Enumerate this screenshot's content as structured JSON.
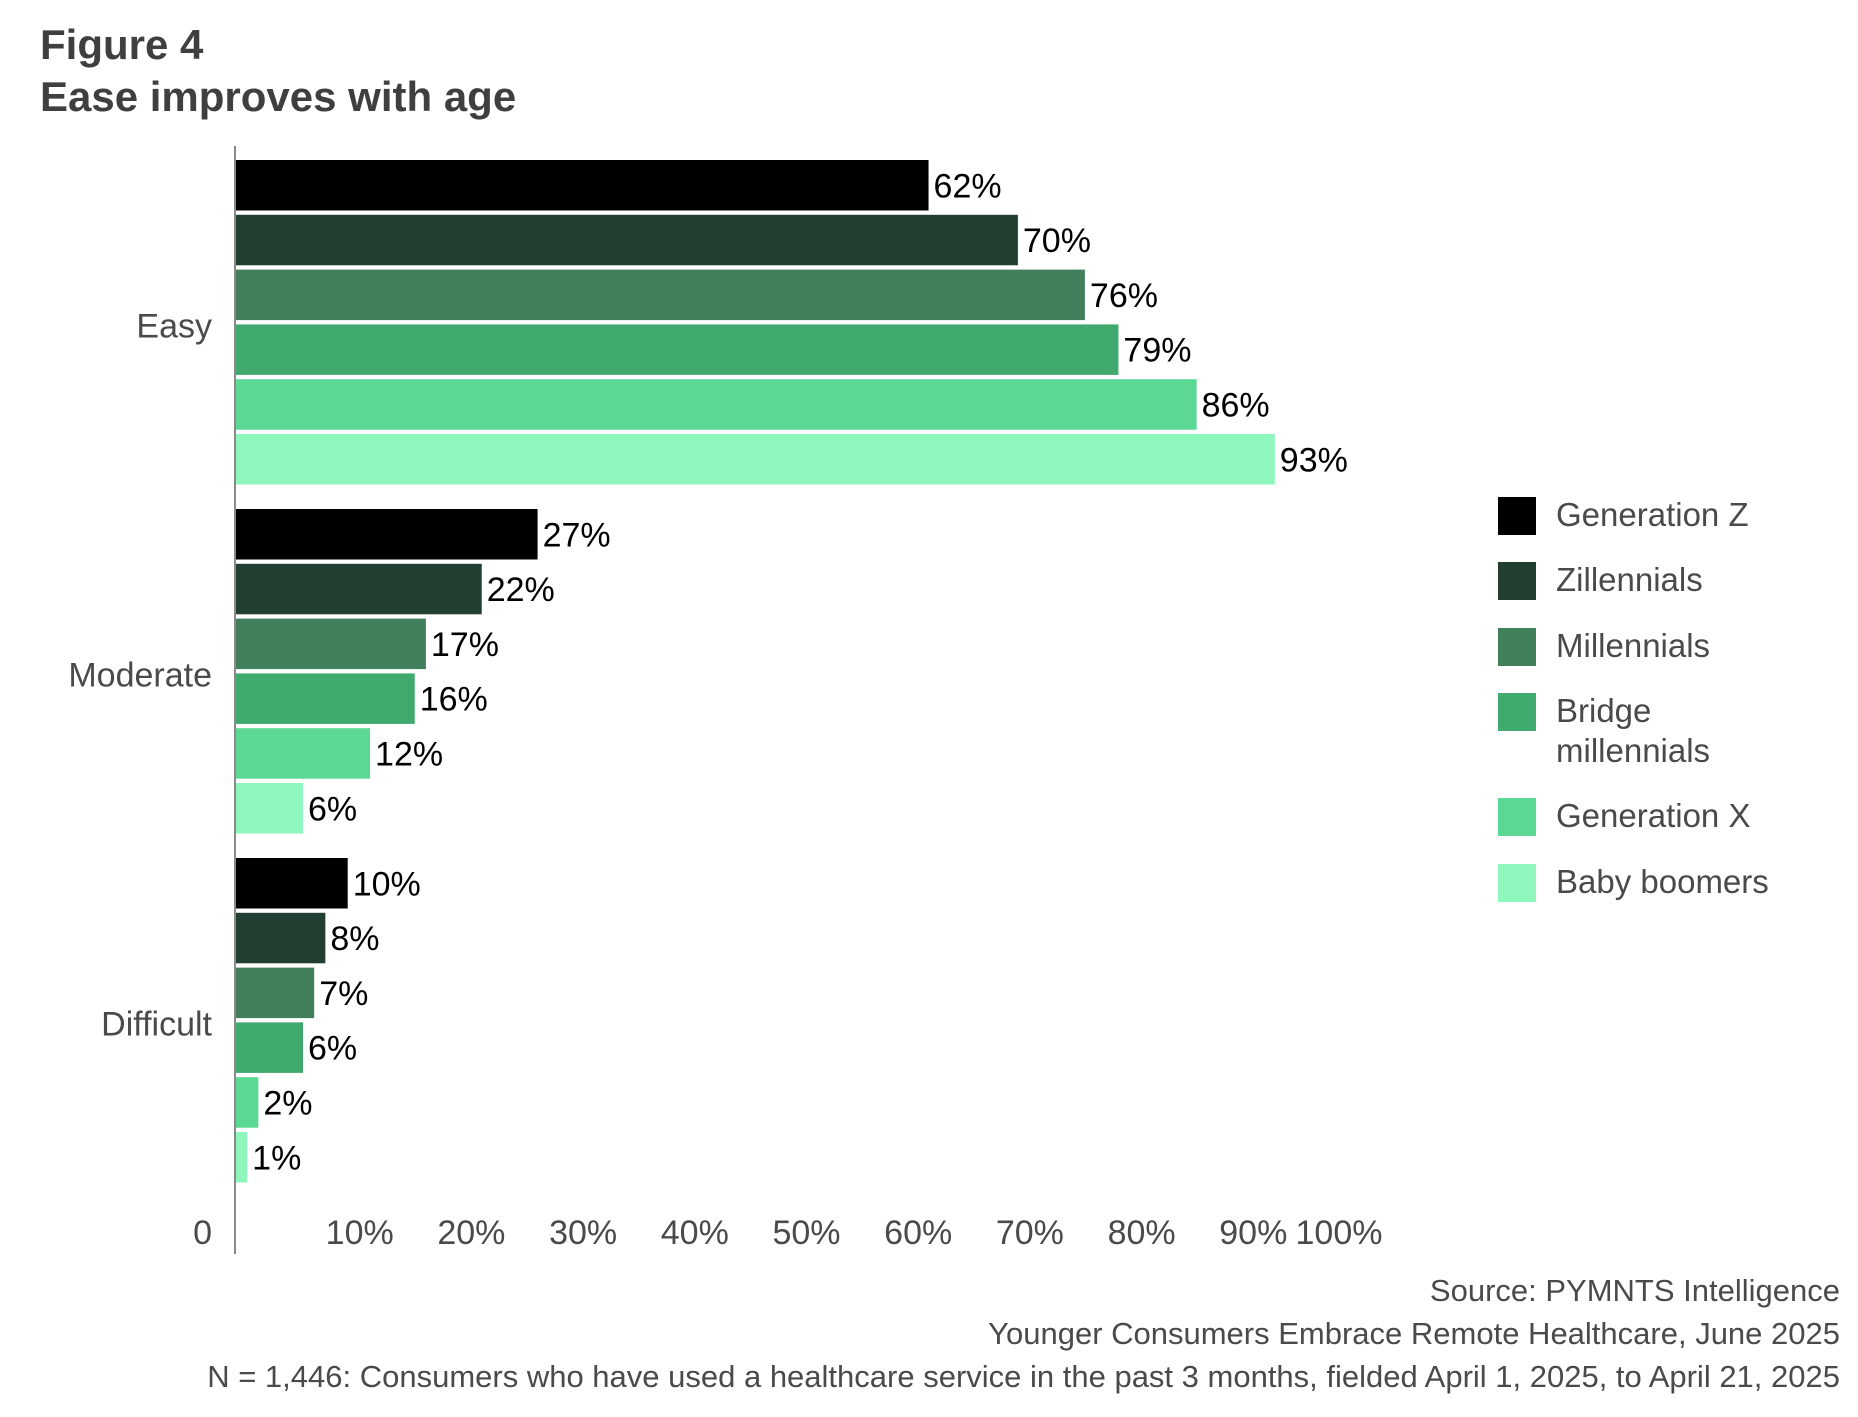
{
  "figure_label": "Figure 4",
  "title": "Ease improves with age",
  "chart_data": {
    "type": "bar",
    "orientation": "horizontal",
    "categories": [
      "Easy",
      "Moderate",
      "Difficult"
    ],
    "series": [
      {
        "name": "Generation Z",
        "color": "#000000",
        "values": [
          62,
          27,
          10
        ],
        "labels": [
          "62%",
          "27%",
          "10%"
        ]
      },
      {
        "name": "Zillennials",
        "color": "#233f31",
        "values": [
          70,
          22,
          8
        ],
        "labels": [
          "70%",
          "22%",
          "8%"
        ]
      },
      {
        "name": "Millennials",
        "color": "#42805c",
        "values": [
          76,
          17,
          7
        ],
        "labels": [
          "76%",
          "17%",
          "7%"
        ]
      },
      {
        "name": "Bridge millennials",
        "color": "#3fa96e",
        "values": [
          79,
          16,
          6
        ],
        "labels": [
          "79%",
          "16%",
          "6%"
        ]
      },
      {
        "name": "Generation X",
        "color": "#5ad894",
        "values": [
          86,
          12,
          2
        ],
        "labels": [
          "86%",
          "12%",
          "2%"
        ]
      },
      {
        "name": "Baby boomers",
        "color": "#8ff7bd",
        "values": [
          93,
          6,
          1
        ],
        "labels": [
          "93%",
          "6%",
          "1%"
        ]
      }
    ],
    "xticks": [
      "0",
      "10%",
      "20%",
      "30%",
      "40%",
      "50%",
      "60%",
      "70%",
      "80%",
      "90%",
      "100%"
    ],
    "xlim": [
      0,
      100
    ],
    "grid": false,
    "legend_position": "right"
  },
  "source": {
    "line1": "Source: PYMNTS Intelligence",
    "line2": "Younger Consumers Embrace Remote Healthcare, June 2025",
    "line3": "N = 1,446: Consumers who have used a healthcare service in the past 3 months, fielded April 1, 2025, to April 21, 2025"
  }
}
